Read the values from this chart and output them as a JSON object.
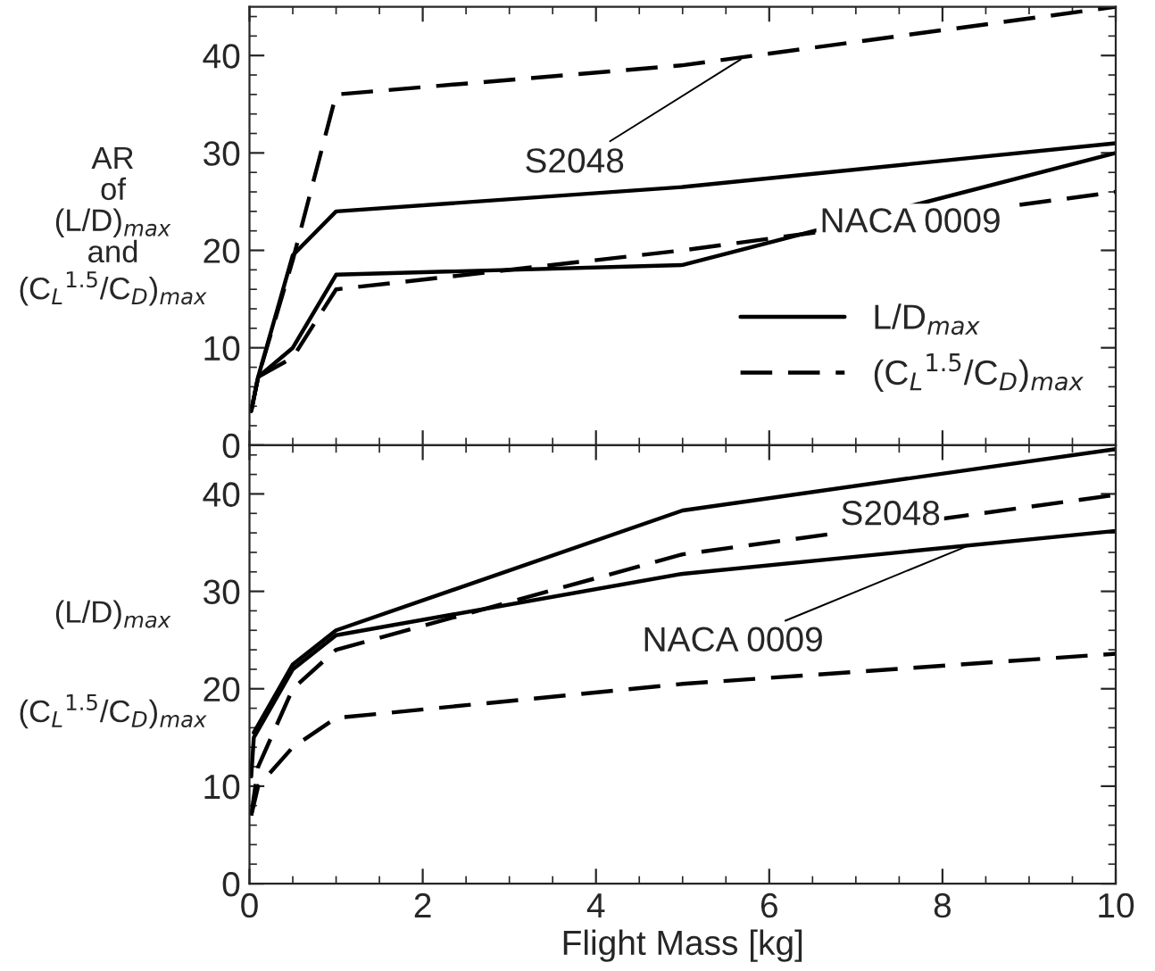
{
  "chart_data": [
    {
      "type": "line",
      "ylabel": "AR\nof\n(L/D)$_{max}$\nand\n(C$_{L}$$^{1.5}$/C$_{D}$)$_{max}$",
      "xlim": [
        0,
        10
      ],
      "xticks": [
        0,
        2,
        4,
        6,
        8,
        10
      ],
      "ylim": [
        0,
        45
      ],
      "yticks": [
        0,
        10,
        20,
        30,
        40
      ],
      "tick_labels": "y",
      "legend": "bottom right",
      "series": [
        {
          "name": "L/D$_{max}$",
          "color": "#000000",
          "line_style": "solid",
          "x": [
            0.02,
            0.1,
            0.5,
            1,
            5,
            10
          ],
          "values": [
            3.5,
            7,
            19.5,
            24,
            26.5,
            31
          ]
        },
        {
          "name": "(C$_{L}$$^{1.5}$/C$_{D}$)$_{max}$",
          "color": "#000000",
          "line_style": "dashed",
          "x": [
            0.02,
            0.1,
            0.5,
            1,
            5,
            10
          ],
          "values": [
            3.5,
            7,
            19,
            36,
            39,
            45
          ]
        },
        {
          "color": "#000000",
          "line_style": "solid",
          "x": [
            0.02,
            0.1,
            0.5,
            1,
            5,
            10
          ],
          "values": [
            3.5,
            7,
            10,
            17.5,
            18.5,
            30
          ]
        },
        {
          "color": "#000000",
          "line_style": "dashed",
          "x": [
            0.1,
            0.5,
            1,
            5,
            10
          ],
          "values": [
            7,
            9,
            16,
            20,
            26
          ]
        }
      ],
      "annotations": [
        {
          "text": "S2048",
          "x": 5.67,
          "y": 39.6
        },
        {
          "text": "NACA 0009",
          "x": 6.4,
          "y": 21.5
        }
      ]
    },
    {
      "type": "line",
      "ylabel": "(L/D)$_{max}$\n\n\n(C$_{L}$$^{1.5}$/C$_{D}$)$_{max}$",
      "xlabel": "Flight Mass [kg]",
      "xlim": [
        0,
        10
      ],
      "xticks": [
        0,
        2,
        4,
        6,
        8,
        10
      ],
      "ylim": [
        0,
        45
      ],
      "yticks": [
        0,
        10,
        20,
        30,
        40
      ],
      "series": [
        {
          "color": "#000000",
          "line_style": "solid",
          "x": [
            0.05,
            0.5,
            1,
            5,
            10
          ],
          "values": [
            15.5,
            22.5,
            26,
            38.3,
            44.6
          ]
        },
        {
          "color": "#000000",
          "line_style": "solid",
          "x": [
            0.02,
            0.05,
            0.5,
            1,
            5,
            10
          ],
          "values": [
            11,
            15,
            22,
            25.5,
            31.8,
            36.2
          ]
        },
        {
          "color": "#000000",
          "line_style": "dashed",
          "x": [
            0.02,
            0.1,
            0.5,
            1,
            5,
            10
          ],
          "values": [
            7,
            12,
            20,
            24,
            33.8,
            39.9
          ]
        },
        {
          "color": "#000000",
          "line_style": "dashed",
          "x": [
            0.02,
            0.1,
            0.5,
            1,
            5,
            10
          ],
          "values": [
            7,
            10,
            14,
            17,
            20.5,
            23.6
          ]
        }
      ],
      "annotations": [
        {
          "text": "S2048",
          "x": 7.4,
          "y": 41.3
        },
        {
          "text": "NACA 0009",
          "x": 8.3,
          "y": 34.7
        }
      ]
    }
  ]
}
